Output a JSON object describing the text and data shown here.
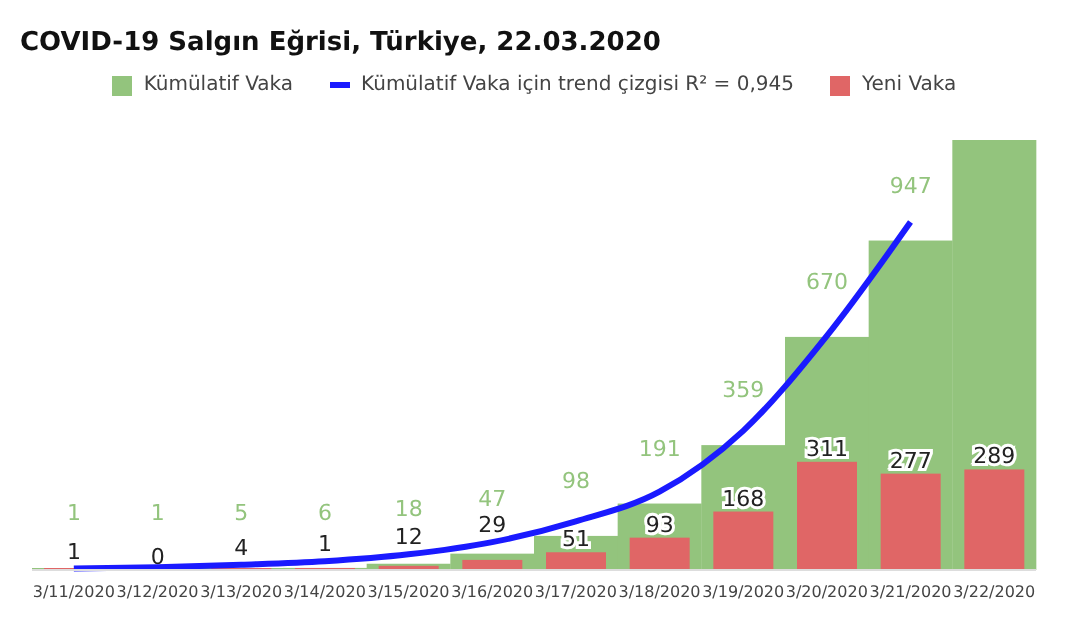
{
  "chart_data": {
    "type": "bar",
    "title": "COVID-19 Salgın Eğrisi, Türkiye, 22.03.2020",
    "legend": "top",
    "categories": [
      "3/11/2020",
      "3/12/2020",
      "3/13/2020",
      "3/14/2020",
      "3/15/2020",
      "3/16/2020",
      "3/17/2020",
      "3/18/2020",
      "3/19/2020",
      "3/20/2020",
      "3/21/2020",
      "3/22/2020"
    ],
    "series": [
      {
        "name": "Kümülatif Vaka",
        "color": "#93c47d",
        "values": [
          1,
          1,
          5,
          6,
          18,
          47,
          98,
          191,
          359,
          670,
          947,
          1236
        ],
        "value_labels": [
          "1",
          "1",
          "5",
          "6",
          "18",
          "47",
          "98",
          "191",
          "359",
          "670",
          "947",
          null
        ]
      },
      {
        "name": "Kümülatif Vaka için trend çizgisi R² = 0,945",
        "type": "line",
        "color": "#1a1aff",
        "values": [
          4,
          8,
          15,
          25,
          45,
          80,
          140,
          225,
          400,
          673,
          1000,
          null
        ]
      },
      {
        "name": "Yeni Vaka",
        "color": "#e06666",
        "values": [
          1,
          0,
          4,
          1,
          12,
          29,
          51,
          93,
          168,
          311,
          277,
          289
        ],
        "value_labels": [
          "1",
          "0",
          "4",
          "1",
          "12",
          "29",
          "51",
          "93",
          "168",
          "311",
          "277",
          "289"
        ]
      }
    ]
  }
}
